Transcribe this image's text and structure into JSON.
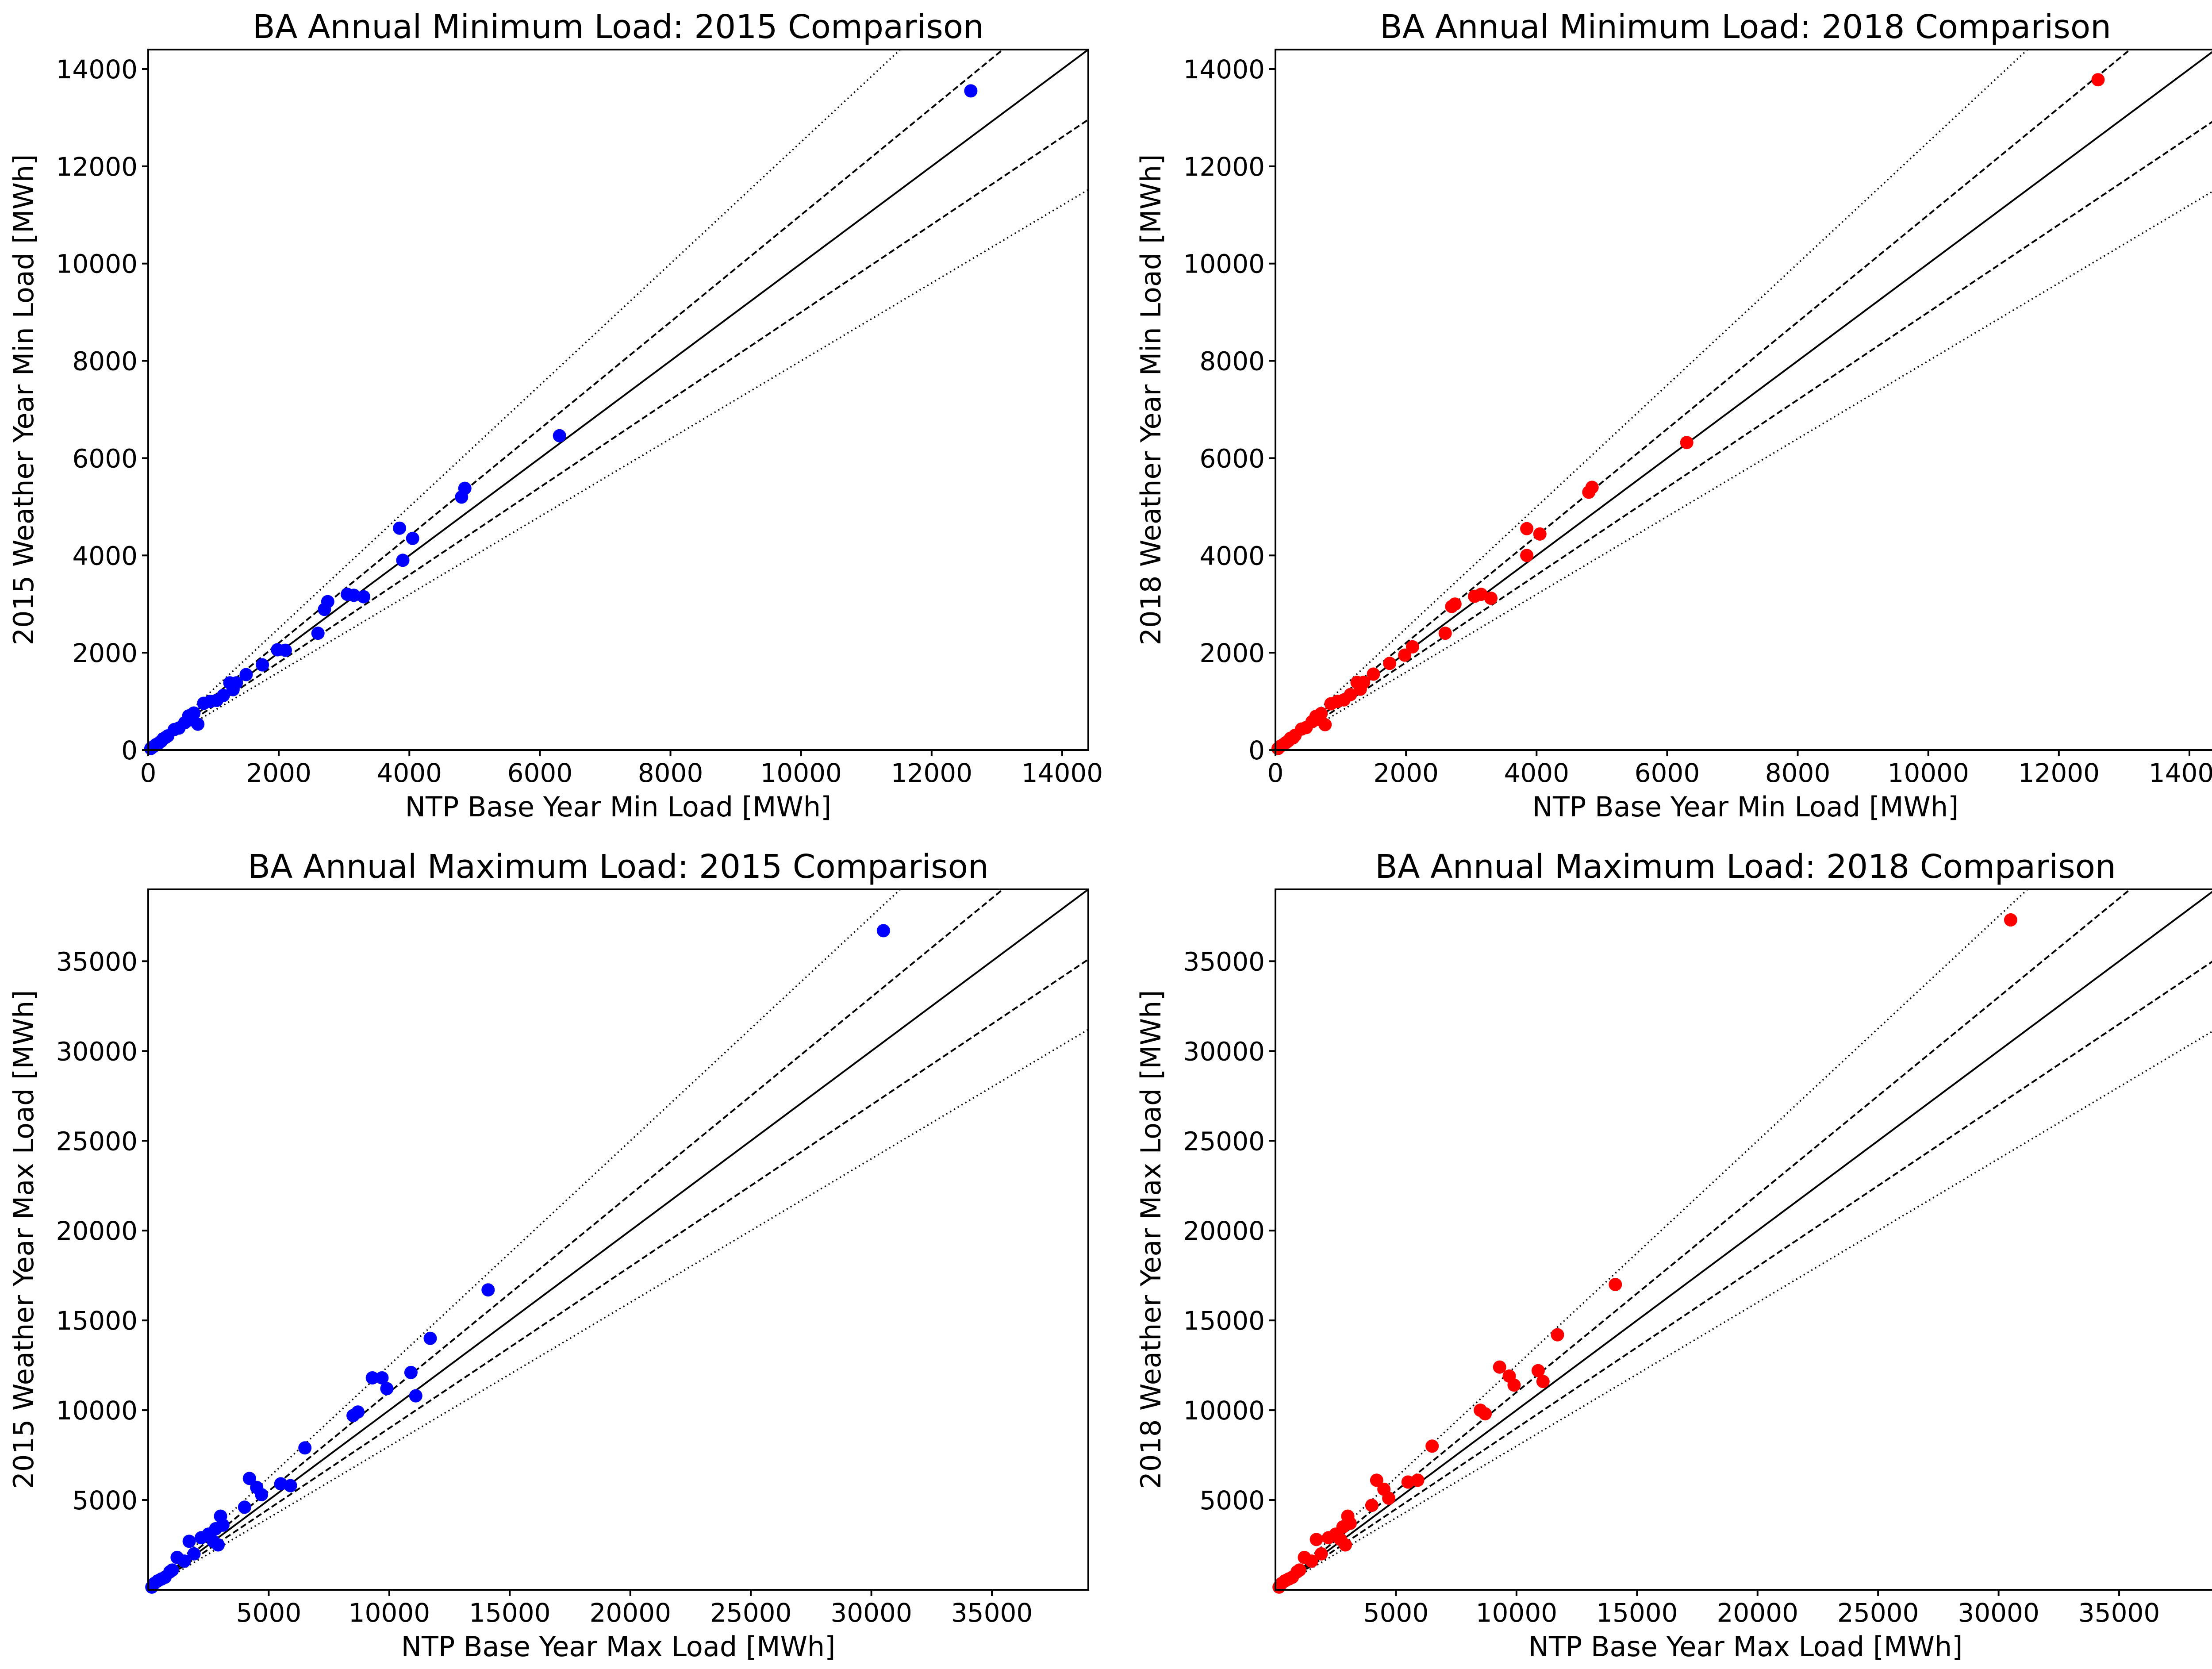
{
  "figure": {
    "background": "#ffffff"
  },
  "reference_lines": [
    {
      "name": "identity",
      "slope": 1.0,
      "style": "solid"
    },
    {
      "name": "upper-10pct",
      "slope": 1.1,
      "style": "dashed"
    },
    {
      "name": "lower-10pct",
      "slope": 0.9,
      "style": "dashed"
    },
    {
      "name": "upper-25pct",
      "slope": 1.25,
      "style": "dotted"
    },
    {
      "name": "lower-25pct",
      "slope": 0.8,
      "style": "dotted"
    }
  ],
  "chart_data": [
    {
      "type": "scatter",
      "id": "min-2015",
      "title": "BA Annual Minimum Load: 2015 Comparison",
      "xlabel": "NTP Base Year Min Load [MWh]",
      "ylabel": "2015 Weather Year Min Load [MWh]",
      "xlim": [
        0,
        14400
      ],
      "ylim": [
        0,
        14400
      ],
      "xticks": [
        0,
        2000,
        4000,
        6000,
        8000,
        10000,
        12000,
        14000
      ],
      "yticks": [
        0,
        2000,
        4000,
        6000,
        8000,
        10000,
        12000,
        14000
      ],
      "color": "#0000ff",
      "grid": false,
      "points": [
        [
          40,
          30
        ],
        [
          80,
          70
        ],
        [
          120,
          110
        ],
        [
          160,
          140
        ],
        [
          200,
          180
        ],
        [
          230,
          230
        ],
        [
          270,
          260
        ],
        [
          300,
          290
        ],
        [
          400,
          420
        ],
        [
          470,
          450
        ],
        [
          560,
          560
        ],
        [
          620,
          700
        ],
        [
          700,
          760
        ],
        [
          760,
          530
        ],
        [
          650,
          620
        ],
        [
          850,
          960
        ],
        [
          950,
          1000
        ],
        [
          1050,
          1020
        ],
        [
          1150,
          1120
        ],
        [
          1250,
          1380
        ],
        [
          1300,
          1240
        ],
        [
          1350,
          1380
        ],
        [
          1500,
          1550
        ],
        [
          1750,
          1750
        ],
        [
          1980,
          2060
        ],
        [
          2100,
          2050
        ],
        [
          2600,
          2400
        ],
        [
          2700,
          2890
        ],
        [
          2750,
          3050
        ],
        [
          3050,
          3200
        ],
        [
          3150,
          3180
        ],
        [
          3300,
          3150
        ],
        [
          3850,
          4560
        ],
        [
          3900,
          3900
        ],
        [
          4050,
          4350
        ],
        [
          4800,
          5200
        ],
        [
          4850,
          5380
        ],
        [
          6300,
          6460
        ],
        [
          12600,
          13550
        ]
      ]
    },
    {
      "type": "scatter",
      "id": "min-2018",
      "title": "BA Annual Minimum Load: 2018 Comparison",
      "xlabel": "NTP Base Year Min Load [MWh]",
      "ylabel": "2018 Weather Year Min Load [MWh]",
      "xlim": [
        0,
        14400
      ],
      "ylim": [
        0,
        14400
      ],
      "xticks": [
        0,
        2000,
        4000,
        6000,
        8000,
        10000,
        12000,
        14000
      ],
      "yticks": [
        0,
        2000,
        4000,
        6000,
        8000,
        10000,
        12000,
        14000
      ],
      "color": "#ff0000",
      "grid": false,
      "points": [
        [
          40,
          30
        ],
        [
          80,
          80
        ],
        [
          120,
          110
        ],
        [
          160,
          150
        ],
        [
          200,
          190
        ],
        [
          230,
          240
        ],
        [
          270,
          250
        ],
        [
          300,
          300
        ],
        [
          400,
          430
        ],
        [
          470,
          460
        ],
        [
          560,
          580
        ],
        [
          620,
          690
        ],
        [
          700,
          750
        ],
        [
          760,
          520
        ],
        [
          650,
          630
        ],
        [
          850,
          950
        ],
        [
          950,
          1000
        ],
        [
          1050,
          1030
        ],
        [
          1150,
          1140
        ],
        [
          1250,
          1390
        ],
        [
          1300,
          1250
        ],
        [
          1350,
          1390
        ],
        [
          1500,
          1560
        ],
        [
          1750,
          1780
        ],
        [
          1980,
          1950
        ],
        [
          2100,
          2120
        ],
        [
          2600,
          2400
        ],
        [
          2700,
          2950
        ],
        [
          2750,
          3000
        ],
        [
          3050,
          3160
        ],
        [
          3150,
          3200
        ],
        [
          3300,
          3120
        ],
        [
          3850,
          4550
        ],
        [
          3850,
          4000
        ],
        [
          4050,
          4440
        ],
        [
          4800,
          5300
        ],
        [
          4850,
          5400
        ],
        [
          6300,
          6320
        ],
        [
          12600,
          13780
        ]
      ]
    },
    {
      "type": "scatter",
      "id": "max-2015",
      "title": "BA Annual Maximum Load: 2015 Comparison",
      "xlabel": "NTP Base Year Max Load [MWh]",
      "ylabel": "2015 Weather Year Max Load [MWh]",
      "xlim": [
        0,
        39000
      ],
      "ylim": [
        0,
        39000
      ],
      "xticks": [
        5000,
        10000,
        15000,
        20000,
        25000,
        30000,
        35000
      ],
      "yticks": [
        5000,
        10000,
        15000,
        20000,
        25000,
        30000,
        35000
      ],
      "color": "#0000ff",
      "grid": false,
      "points": [
        [
          150,
          150
        ],
        [
          250,
          350
        ],
        [
          400,
          500
        ],
        [
          550,
          600
        ],
        [
          700,
          700
        ],
        [
          900,
          1000
        ],
        [
          1000,
          1100
        ],
        [
          1200,
          1800
        ],
        [
          1500,
          1600
        ],
        [
          1700,
          2700
        ],
        [
          1900,
          2000
        ],
        [
          2200,
          2900
        ],
        [
          2500,
          3100
        ],
        [
          2700,
          2700
        ],
        [
          2800,
          3400
        ],
        [
          2900,
          2500
        ],
        [
          3000,
          4100
        ],
        [
          3100,
          3600
        ],
        [
          4000,
          4600
        ],
        [
          4200,
          6200
        ],
        [
          4500,
          5700
        ],
        [
          4700,
          5300
        ],
        [
          5500,
          5900
        ],
        [
          5900,
          5800
        ],
        [
          6500,
          7900
        ],
        [
          8500,
          9700
        ],
        [
          8700,
          9900
        ],
        [
          9300,
          11800
        ],
        [
          9700,
          11800
        ],
        [
          9900,
          11200
        ],
        [
          10900,
          12100
        ],
        [
          11100,
          10800
        ],
        [
          11700,
          14000
        ],
        [
          14100,
          16700
        ],
        [
          30500,
          36700
        ]
      ]
    },
    {
      "type": "scatter",
      "id": "max-2018",
      "title": "BA Annual Maximum Load: 2018 Comparison",
      "xlabel": "NTP Base Year Max Load [MWh]",
      "ylabel": "2018 Weather Year Max Load [MWh]",
      "xlim": [
        0,
        39000
      ],
      "ylim": [
        0,
        39000
      ],
      "xticks": [
        5000,
        10000,
        15000,
        20000,
        25000,
        30000,
        35000
      ],
      "yticks": [
        5000,
        10000,
        15000,
        20000,
        25000,
        30000,
        35000
      ],
      "color": "#ff0000",
      "grid": false,
      "points": [
        [
          150,
          150
        ],
        [
          250,
          350
        ],
        [
          400,
          500
        ],
        [
          550,
          600
        ],
        [
          700,
          700
        ],
        [
          900,
          1000
        ],
        [
          1000,
          1100
        ],
        [
          1200,
          1800
        ],
        [
          1500,
          1600
        ],
        [
          1700,
          2800
        ],
        [
          1900,
          2000
        ],
        [
          2200,
          2900
        ],
        [
          2500,
          3100
        ],
        [
          2700,
          2800
        ],
        [
          2800,
          3500
        ],
        [
          2900,
          2500
        ],
        [
          3000,
          4100
        ],
        [
          3100,
          3700
        ],
        [
          4000,
          4700
        ],
        [
          4200,
          6100
        ],
        [
          4500,
          5600
        ],
        [
          4700,
          5100
        ],
        [
          5500,
          6000
        ],
        [
          5900,
          6100
        ],
        [
          6500,
          8000
        ],
        [
          8500,
          10000
        ],
        [
          8700,
          9800
        ],
        [
          9300,
          12400
        ],
        [
          9700,
          11900
        ],
        [
          9900,
          11400
        ],
        [
          10900,
          12200
        ],
        [
          11100,
          11600
        ],
        [
          11700,
          14200
        ],
        [
          14100,
          17000
        ],
        [
          30500,
          37300
        ]
      ]
    }
  ]
}
